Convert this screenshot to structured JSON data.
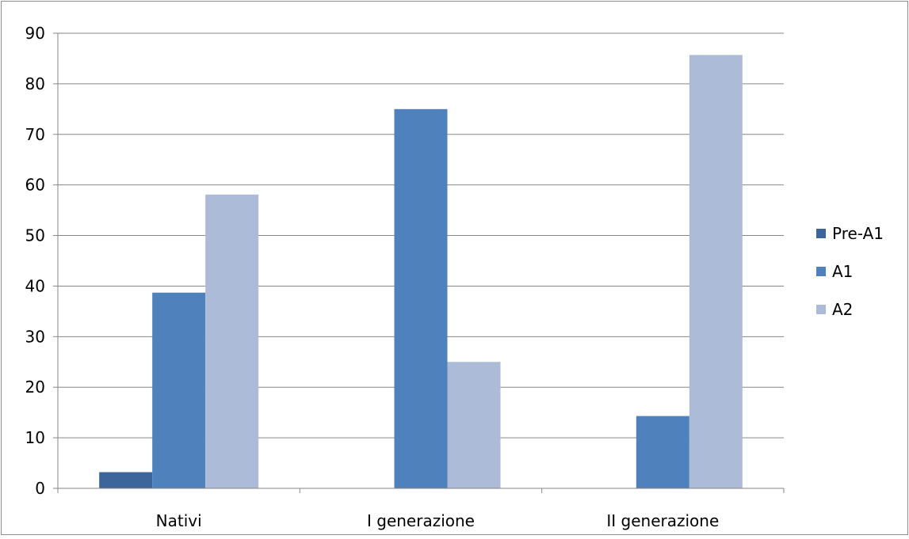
{
  "chart_data": {
    "type": "bar",
    "title": "",
    "xlabel": "",
    "ylabel": "",
    "categories": [
      "Nativi",
      "I generazione",
      "II generazione"
    ],
    "series": [
      {
        "name": "Pre-A1",
        "color": "#3c669b",
        "values": [
          3.2,
          0,
          0
        ]
      },
      {
        "name": "A1",
        "color": "#4f81bd",
        "values": [
          38.7,
          75,
          14.3
        ]
      },
      {
        "name": "A2",
        "color": "#acbbd8",
        "values": [
          58.1,
          25,
          85.7
        ]
      }
    ],
    "ylim": [
      0,
      90
    ],
    "yticks": [
      0,
      10,
      20,
      30,
      40,
      50,
      60,
      70,
      80,
      90
    ],
    "grid": true,
    "legend": "right"
  }
}
